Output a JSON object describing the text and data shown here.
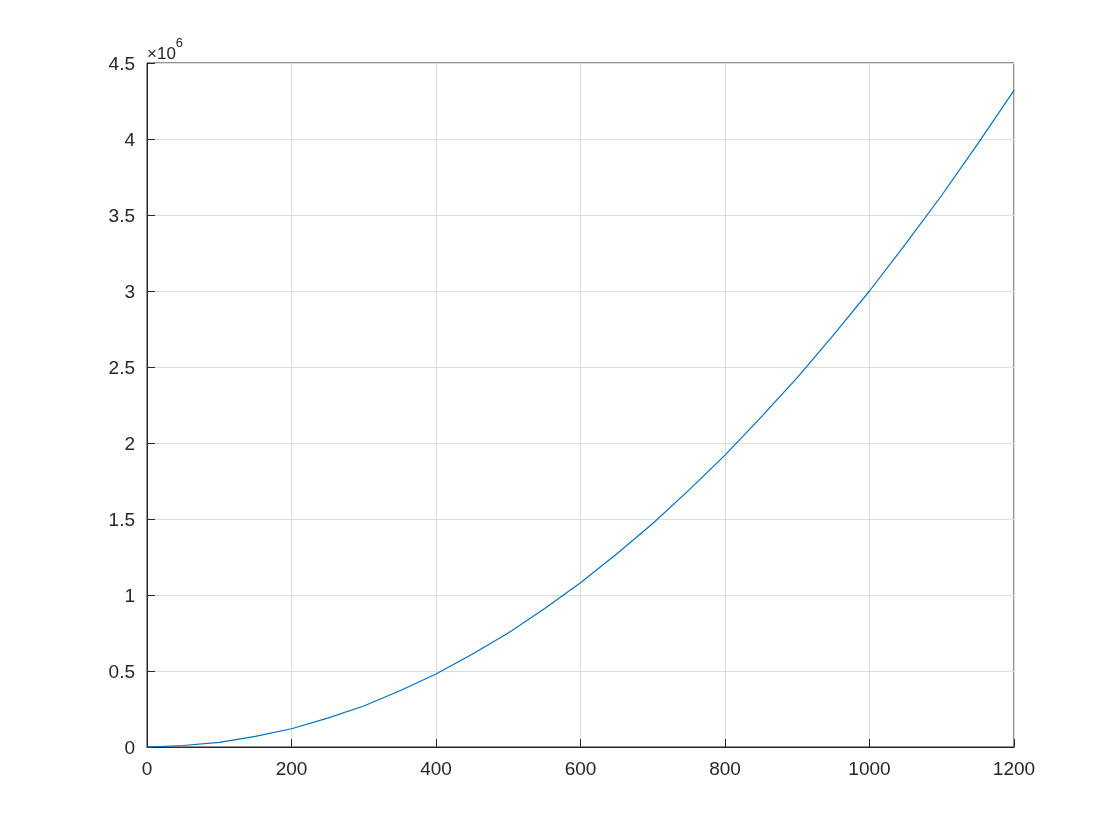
{
  "chart_data": {
    "type": "line",
    "annotations": [
      "×10$^{6}$"
    ],
    "x": [
      0,
      50,
      100,
      150,
      200,
      250,
      300,
      350,
      400,
      450,
      500,
      550,
      600,
      650,
      700,
      750,
      800,
      850,
      900,
      950,
      1000,
      1050,
      1100,
      1150,
      1200
    ],
    "series": [
      {
        "color": "#0072bd",
        "values": [
          0,
          0.01,
          0.03,
          0.07,
          0.12,
          0.19,
          0.27,
          0.37,
          0.48,
          0.61,
          0.75,
          0.91,
          1.08,
          1.27,
          1.47,
          1.69,
          1.92,
          2.17,
          2.43,
          2.71,
          3.0,
          3.31,
          3.63,
          3.97,
          4.32
        ]
      }
    ],
    "xlim": [
      0,
      1200
    ],
    "xticks": [
      0,
      200,
      400,
      600,
      800,
      1000,
      1200
    ],
    "ylim": [
      0,
      4.5
    ],
    "yticks": [
      0,
      0.5,
      1,
      1.5,
      2,
      2.5,
      3,
      3.5,
      4,
      4.5
    ],
    "grid": true,
    "marker": "none",
    "line_style": "solid"
  }
}
